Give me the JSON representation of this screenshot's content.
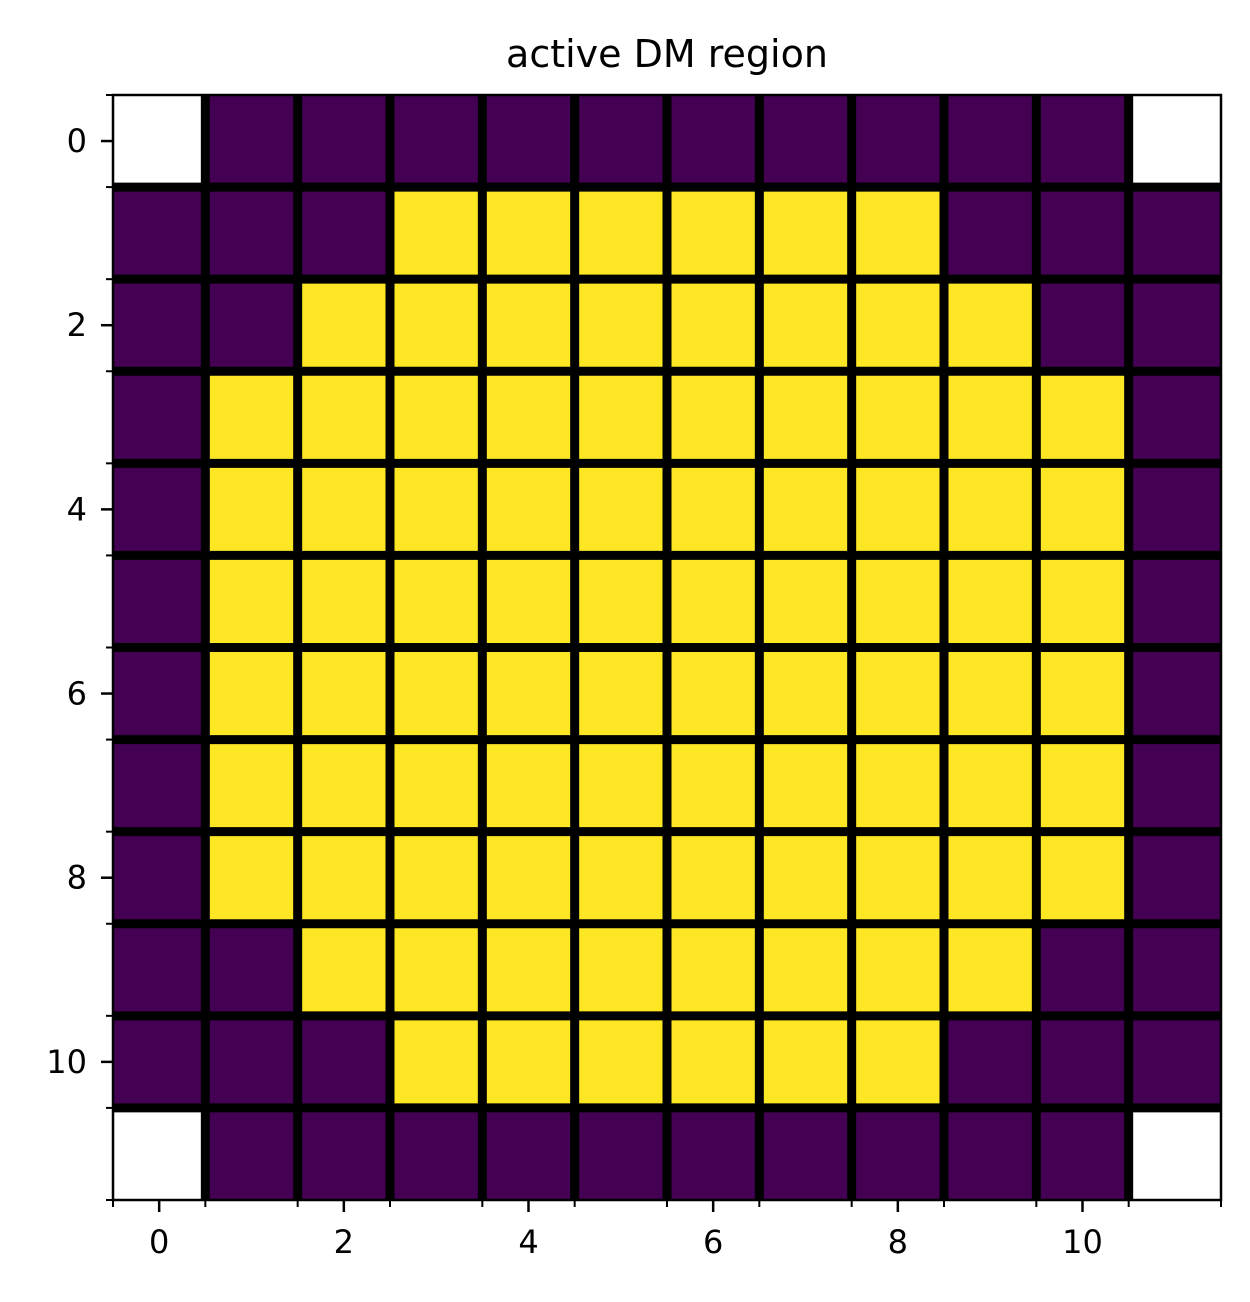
{
  "chart_data": {
    "type": "heatmap",
    "title": "active DM region",
    "xlabel": "",
    "ylabel": "",
    "rows": 12,
    "cols": 12,
    "x_ticks": [
      0,
      2,
      4,
      6,
      8,
      10
    ],
    "y_ticks": [
      0,
      2,
      4,
      6,
      8,
      10
    ],
    "xlim": [
      -0.5,
      11.5
    ],
    "ylim": [
      11.5,
      -0.5
    ],
    "grid": true,
    "values": [
      [
        null,
        0,
        0,
        0,
        0,
        0,
        0,
        0,
        0,
        0,
        0,
        null
      ],
      [
        0,
        0,
        0,
        1,
        1,
        1,
        1,
        1,
        1,
        0,
        0,
        0
      ],
      [
        0,
        0,
        1,
        1,
        1,
        1,
        1,
        1,
        1,
        1,
        0,
        0
      ],
      [
        0,
        1,
        1,
        1,
        1,
        1,
        1,
        1,
        1,
        1,
        1,
        0
      ],
      [
        0,
        1,
        1,
        1,
        1,
        1,
        1,
        1,
        1,
        1,
        1,
        0
      ],
      [
        0,
        1,
        1,
        1,
        1,
        1,
        1,
        1,
        1,
        1,
        1,
        0
      ],
      [
        0,
        1,
        1,
        1,
        1,
        1,
        1,
        1,
        1,
        1,
        1,
        0
      ],
      [
        0,
        1,
        1,
        1,
        1,
        1,
        1,
        1,
        1,
        1,
        1,
        0
      ],
      [
        0,
        1,
        1,
        1,
        1,
        1,
        1,
        1,
        1,
        1,
        1,
        0
      ],
      [
        0,
        0,
        1,
        1,
        1,
        1,
        1,
        1,
        1,
        1,
        0,
        0
      ],
      [
        0,
        0,
        0,
        1,
        1,
        1,
        1,
        1,
        1,
        0,
        0,
        0
      ],
      [
        null,
        0,
        0,
        0,
        0,
        0,
        0,
        0,
        0,
        0,
        0,
        null
      ]
    ],
    "colors": {
      "low": "#440154",
      "high": "#fde725",
      "missing": "#ffffff",
      "grid": "#000000"
    }
  }
}
